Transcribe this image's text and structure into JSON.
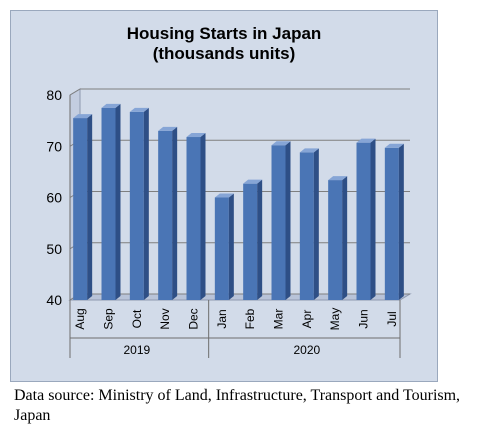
{
  "chart_data": {
    "type": "bar",
    "title": "Housing Starts in Japan",
    "subtitle": "(thousands units)",
    "categories": [
      "Aug",
      "Sep",
      "Oct",
      "Nov",
      "Dec",
      "Jan",
      "Feb",
      "Mar",
      "Apr",
      "May",
      "Jun",
      "Jul"
    ],
    "groups": [
      {
        "label": "2019",
        "count": 5
      },
      {
        "label": "2020",
        "count": 7
      }
    ],
    "values": [
      75.5,
      77.5,
      76.7,
      73.0,
      71.8,
      60.0,
      62.7,
      70.2,
      68.8,
      63.4,
      70.7,
      69.7
    ],
    "ylim": [
      40,
      80
    ],
    "yticks": [
      40,
      50,
      60,
      70,
      80
    ],
    "grid": true,
    "colors": {
      "bar": "#4a75b5",
      "bar_side": "#2e4f86",
      "bar_top": "#86a5d6",
      "panel": "#d2dbe9",
      "grid": "#7f7f7f"
    }
  },
  "source_note": "Data source: Ministry of Land, Infrastructure, Transport and Tourism, Japan"
}
